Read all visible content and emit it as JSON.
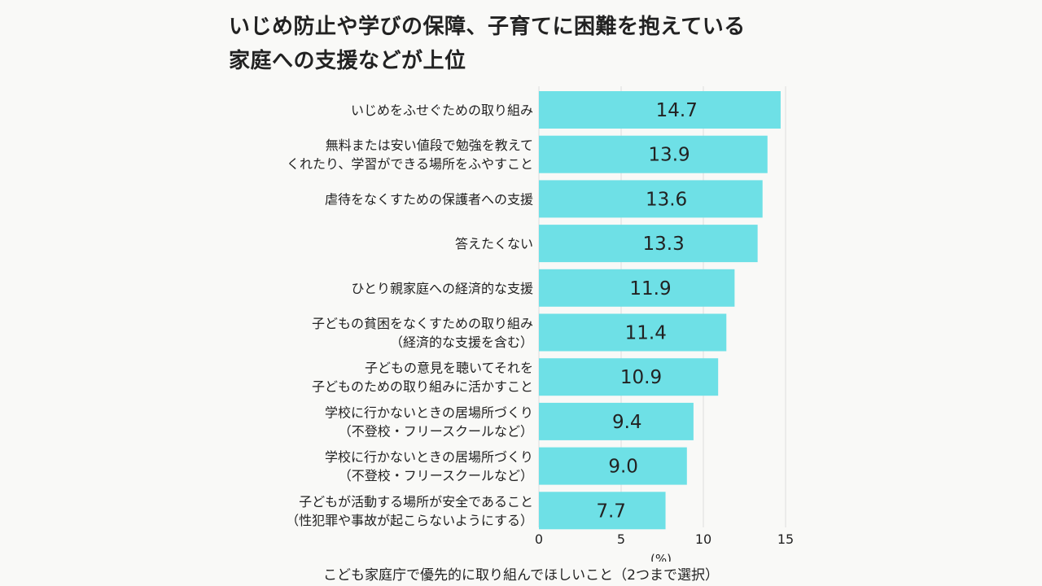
{
  "title_lines": [
    "いじめ防止や学びの保障、子育てに困難を抱えている",
    "家庭への支援などが上位"
  ],
  "chart_data": {
    "type": "bar",
    "orientation": "horizontal",
    "title": "いじめ防止や学びの保障、子育てに困難を抱えている家庭への支援などが上位",
    "categories": [
      [
        "いじめをふせぐための取り組み"
      ],
      [
        "無料または安い値段で勉強を教えて",
        "くれたり、学習ができる場所をふやすこと"
      ],
      [
        "虐待をなくすための保護者への支援"
      ],
      [
        "答えたくない"
      ],
      [
        "ひとり親家庭への経済的な支援"
      ],
      [
        "子どもの貧困をなくすための取り組み",
        "（経済的な支援を含む）"
      ],
      [
        "子どもの意見を聴いてそれを",
        "子どものための取り組みに活かすこと"
      ],
      [
        "学校に行かないときの居場所づくり",
        "（不登校・フリースクールなど）"
      ],
      [
        "学校に行かないときの居場所づくり",
        "（不登校・フリースクールなど）"
      ],
      [
        "子どもが活動する場所が安全であること",
        "（性犯罪や事故が起こらないようにする）"
      ]
    ],
    "values": [
      14.7,
      13.9,
      13.6,
      13.3,
      11.9,
      11.4,
      10.9,
      9.4,
      9.0,
      7.7
    ],
    "value_labels": [
      "14.7",
      "13.9",
      "13.6",
      "13.3",
      "11.9",
      "11.4",
      "10.9",
      "9.4",
      "9.0",
      "7.7"
    ],
    "xlim": [
      0,
      15
    ],
    "xticks": [
      "0",
      "5",
      "10",
      "15"
    ],
    "xunit": "(%)",
    "xlabel": "こども家庭庁で優先的に取り組んでほしいこと（2つまで選択）",
    "grid": true,
    "bar_color": "#6ee0e6",
    "text_color": "#222222",
    "grid_color": "#dddddd"
  }
}
